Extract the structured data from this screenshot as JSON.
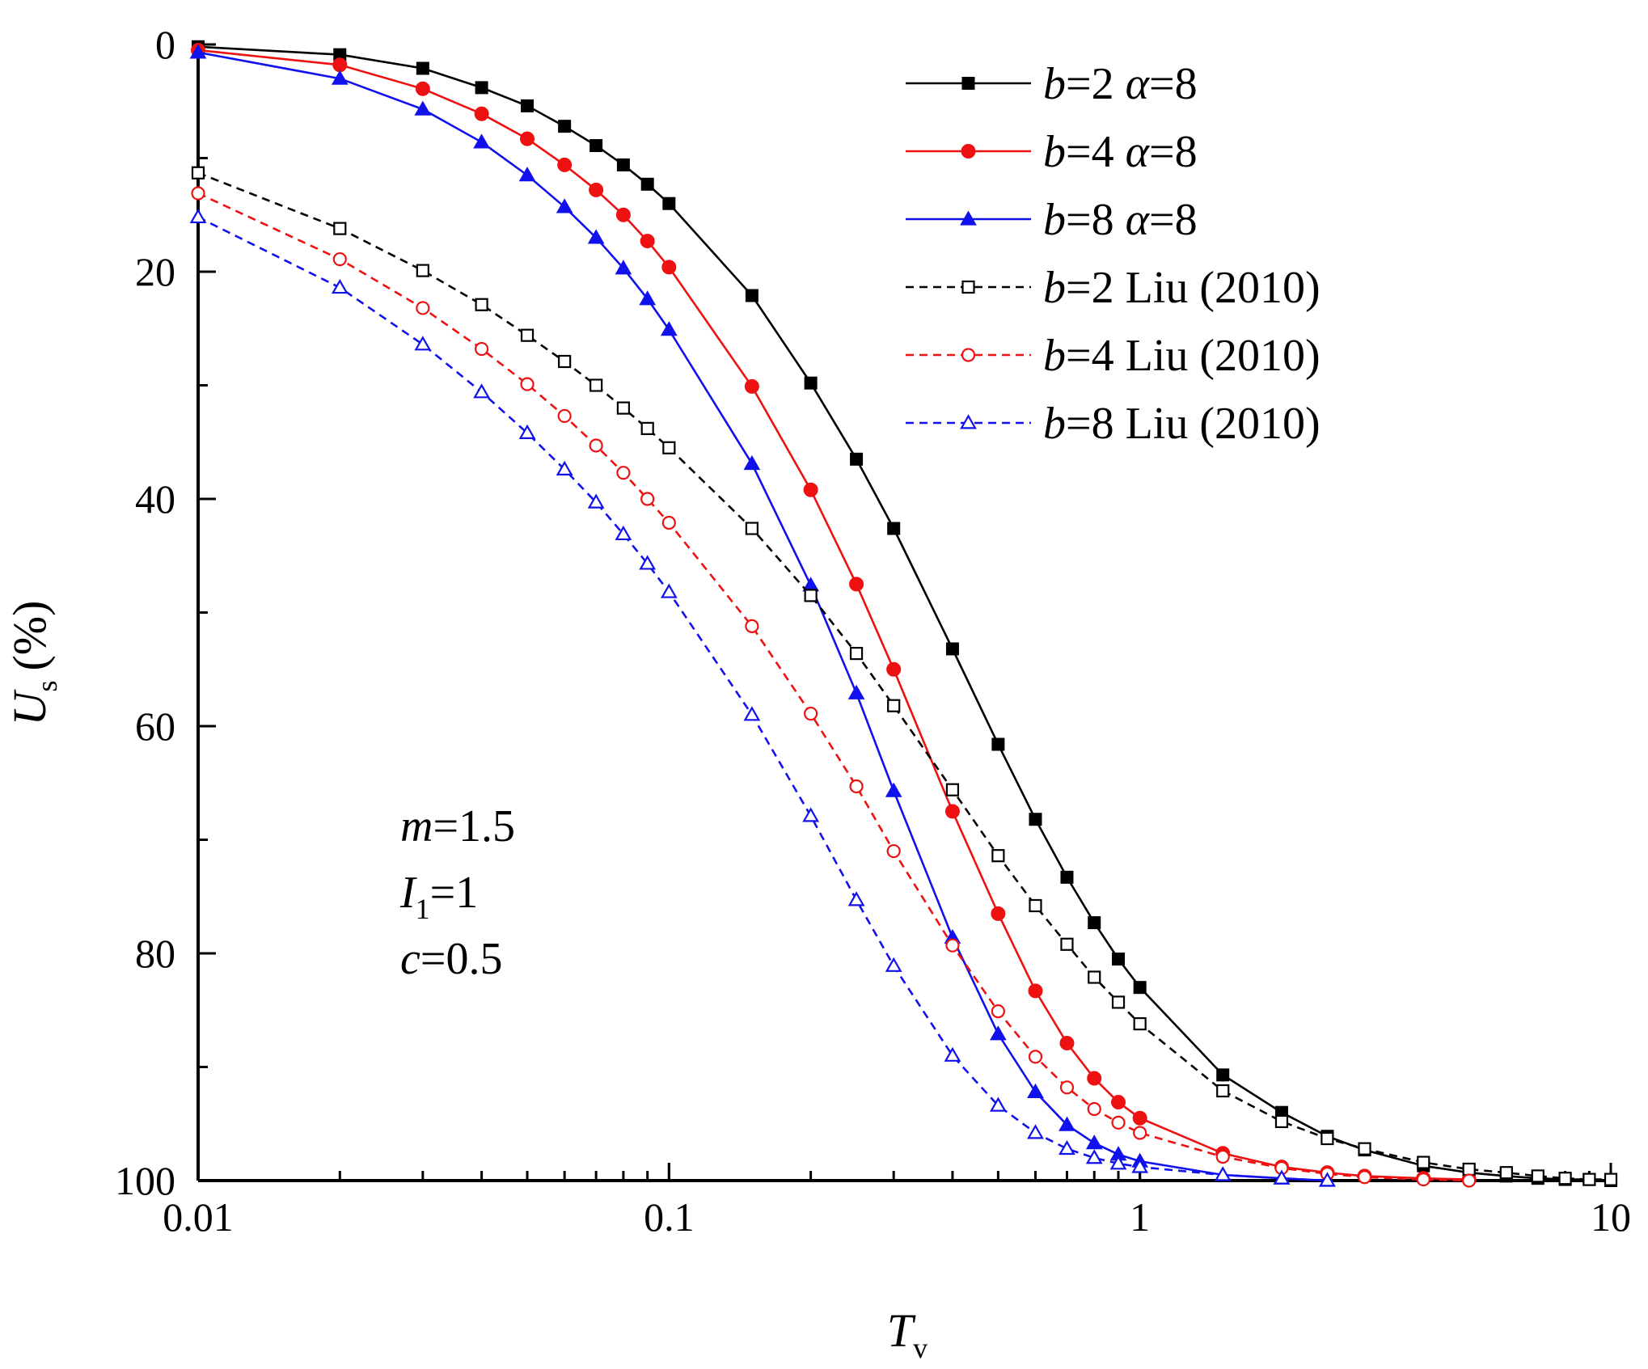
{
  "chart_data": {
    "type": "line",
    "x_scale": "log",
    "xlim": [
      0.01,
      10
    ],
    "ylim": [
      0,
      100
    ],
    "y_inverted": true,
    "x_ticks": [
      0.01,
      0.1,
      1,
      10
    ],
    "x_tick_labels": [
      "0.01",
      "0.1",
      "1",
      "10"
    ],
    "y_ticks": [
      0,
      20,
      40,
      60,
      80,
      100
    ],
    "y_tick_labels": [
      "0",
      "20",
      "40",
      "60",
      "80",
      "100"
    ],
    "xlabel": {
      "main": "T",
      "sub": "v"
    },
    "ylabel": {
      "main": "U",
      "sub": "s",
      "suffix": "(%)"
    },
    "legend_position": "top-right",
    "annotations": [
      {
        "var": "m",
        "sub": "",
        "rest": "=1.5"
      },
      {
        "var": "I",
        "sub": "1",
        "rest": "=1"
      },
      {
        "var": "c",
        "sub": "",
        "rest": "=0.5"
      }
    ],
    "series": [
      {
        "name": "b=2 α=8",
        "legend_var": "b",
        "legend_rest": "=2 ",
        "legend_var2": "α",
        "legend_rest2": "=8",
        "color": "#000000",
        "dash": "solid",
        "marker": "square-filled",
        "x": [
          0.01,
          0.02,
          0.03,
          0.04,
          0.05,
          0.06,
          0.07,
          0.08,
          0.09,
          0.1,
          0.15,
          0.2,
          0.25,
          0.3,
          0.4,
          0.5,
          0.6,
          0.7,
          0.8,
          0.9,
          1,
          1.5,
          2,
          2.5,
          3,
          4,
          5,
          6,
          7,
          8,
          9,
          10
        ],
        "y": [
          0.2,
          0.9,
          2.1,
          3.8,
          5.4,
          7.2,
          8.9,
          10.6,
          12.3,
          14.0,
          22.1,
          29.8,
          36.5,
          42.6,
          53.2,
          61.6,
          68.2,
          73.3,
          77.3,
          80.5,
          83.0,
          90.7,
          94.0,
          96.1,
          97.3,
          98.7,
          99.3,
          99.6,
          99.8,
          99.9,
          99.9,
          100
        ]
      },
      {
        "name": "b=4 α=8",
        "legend_var": "b",
        "legend_rest": "=4 ",
        "legend_var2": "α",
        "legend_rest2": "=8",
        "color": "#ee1111",
        "dash": "solid",
        "marker": "circle-filled",
        "x": [
          0.01,
          0.02,
          0.03,
          0.04,
          0.05,
          0.06,
          0.07,
          0.08,
          0.09,
          0.1,
          0.15,
          0.2,
          0.25,
          0.3,
          0.4,
          0.5,
          0.6,
          0.7,
          0.8,
          0.9,
          1,
          1.5,
          2,
          2.5,
          3,
          4,
          5
        ],
        "y": [
          0.5,
          1.8,
          3.9,
          6.1,
          8.3,
          10.6,
          12.8,
          15.0,
          17.3,
          19.6,
          30.1,
          39.2,
          47.5,
          55.0,
          67.5,
          76.5,
          83.3,
          87.9,
          91.0,
          93.1,
          94.5,
          97.6,
          98.8,
          99.3,
          99.6,
          99.8,
          99.9
        ]
      },
      {
        "name": "b=8 α=8",
        "legend_var": "b",
        "legend_rest": "=8 ",
        "legend_var2": "α",
        "legend_rest2": "=8",
        "color": "#1111ee",
        "dash": "solid",
        "marker": "triangle-filled",
        "x": [
          0.01,
          0.02,
          0.03,
          0.04,
          0.05,
          0.06,
          0.07,
          0.08,
          0.09,
          0.1,
          0.15,
          0.2,
          0.25,
          0.3,
          0.4,
          0.5,
          0.6,
          0.7,
          0.8,
          0.9,
          1,
          1.5,
          2,
          2.5
        ],
        "y": [
          0.7,
          3.0,
          5.7,
          8.6,
          11.5,
          14.3,
          17.0,
          19.7,
          22.4,
          25.1,
          36.9,
          47.6,
          57.1,
          65.7,
          78.6,
          87.1,
          92.2,
          95.1,
          96.7,
          97.7,
          98.3,
          99.5,
          99.8,
          100
        ]
      },
      {
        "name": "b=2 Liu (2010)",
        "legend_var": "b",
        "legend_rest": "=2 Liu (2010)",
        "legend_var2": "",
        "legend_rest2": "",
        "color": "#000000",
        "dash": "dashed",
        "marker": "square-open",
        "x": [
          0.01,
          0.02,
          0.03,
          0.04,
          0.05,
          0.06,
          0.07,
          0.08,
          0.09,
          0.1,
          0.15,
          0.2,
          0.25,
          0.3,
          0.4,
          0.5,
          0.6,
          0.7,
          0.8,
          0.9,
          1,
          1.5,
          2,
          2.5,
          3,
          4,
          5,
          6,
          7,
          8,
          9,
          10
        ],
        "y": [
          11.3,
          16.2,
          19.9,
          22.9,
          25.6,
          27.9,
          30.0,
          32.0,
          33.8,
          35.5,
          42.6,
          48.5,
          53.6,
          58.2,
          65.6,
          71.4,
          75.8,
          79.2,
          82.1,
          84.3,
          86.2,
          92.1,
          94.8,
          96.3,
          97.2,
          98.4,
          99.0,
          99.3,
          99.6,
          99.8,
          99.9,
          99.9
        ]
      },
      {
        "name": "b=4 Liu (2010)",
        "legend_var": "b",
        "legend_rest": "=4 Liu (2010)",
        "legend_var2": "",
        "legend_rest2": "",
        "color": "#ee1111",
        "dash": "dashed",
        "marker": "circle-open",
        "x": [
          0.01,
          0.02,
          0.03,
          0.04,
          0.05,
          0.06,
          0.07,
          0.08,
          0.09,
          0.1,
          0.15,
          0.2,
          0.25,
          0.3,
          0.4,
          0.5,
          0.6,
          0.7,
          0.8,
          0.9,
          1,
          1.5,
          2,
          2.5,
          3,
          4,
          5
        ],
        "y": [
          13.1,
          18.9,
          23.2,
          26.8,
          29.9,
          32.7,
          35.3,
          37.7,
          40.0,
          42.1,
          51.2,
          58.9,
          65.3,
          71.0,
          79.3,
          85.1,
          89.1,
          91.8,
          93.7,
          94.9,
          95.8,
          97.9,
          98.9,
          99.4,
          99.7,
          99.9,
          100
        ]
      },
      {
        "name": "b=8 Liu (2010)",
        "legend_var": "b",
        "legend_rest": "=8 Liu (2010)",
        "legend_var2": "",
        "legend_rest2": "",
        "color": "#1111ee",
        "dash": "dashed",
        "marker": "triangle-open",
        "x": [
          0.01,
          0.02,
          0.03,
          0.04,
          0.05,
          0.06,
          0.07,
          0.08,
          0.09,
          0.1,
          0.15,
          0.2,
          0.25,
          0.3,
          0.4,
          0.5,
          0.6,
          0.7,
          0.8,
          0.9,
          1,
          1.5,
          2,
          2.5
        ],
        "y": [
          15.2,
          21.4,
          26.4,
          30.6,
          34.2,
          37.4,
          40.3,
          43.1,
          45.7,
          48.2,
          59.0,
          67.9,
          75.3,
          81.1,
          89.0,
          93.4,
          95.8,
          97.2,
          98.0,
          98.5,
          98.8,
          99.5,
          99.8,
          100
        ]
      }
    ]
  }
}
